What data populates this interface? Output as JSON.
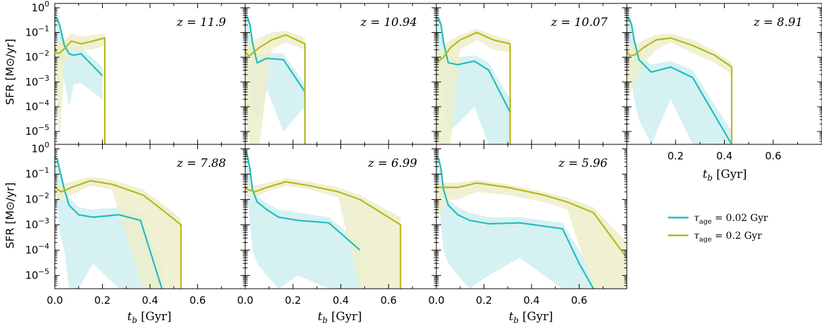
{
  "figure": {
    "ylabel_prefix": "SFR ",
    "ylabel_unit": "[M⊙/yr]",
    "xlabel_var": "t",
    "xlabel_sub": "b",
    "xlabel_unit": " [Gyr]"
  },
  "legend": [
    {
      "tau": "τ",
      "sub": "age",
      "rest": " = 0.02 Gyr",
      "color": "#1fbdbd"
    },
    {
      "tau": "τ",
      "sub": "age",
      "rest": " = 0.2 Gyr",
      "color": "#b5b81a"
    }
  ],
  "colors": {
    "cyan": "#1fbdbd",
    "cyan_band": "#cfeef0",
    "olive": "#b5b81a",
    "olive_band": "#ecefca"
  },
  "chart_data": [
    {
      "type": "line",
      "label": "z = 11.9",
      "xlim": [
        0.0,
        0.8
      ],
      "ylim": [
        3e-06,
        1.5
      ],
      "yscale": "log",
      "series": [
        {
          "name": "τage = 0.02 Gyr",
          "x": [
            0.0,
            0.01,
            0.02,
            0.04,
            0.06,
            0.08,
            0.11,
            0.2
          ],
          "y": [
            0.4,
            0.35,
            0.2,
            0.03,
            0.014,
            0.012,
            0.014,
            0.0018
          ],
          "lo": [
            0.05,
            0.03,
            0.01,
            0.001,
            0.0001,
            0.0008,
            0.0009,
            0.0002
          ],
          "hi": [
            0.6,
            0.5,
            0.3,
            0.05,
            0.025,
            0.025,
            0.025,
            0.004
          ]
        },
        {
          "name": "τage = 0.2 Gyr",
          "x": [
            0.0,
            0.01,
            0.02,
            0.04,
            0.07,
            0.11,
            0.16,
            0.21
          ],
          "y": [
            0.025,
            0.014,
            0.015,
            0.022,
            0.045,
            0.035,
            0.045,
            0.06
          ],
          "lo": [
            0.001,
            0.0001,
            3e-06,
            0.005,
            0.02,
            0.02,
            0.02,
            0.03
          ],
          "hi": [
            0.04,
            0.04,
            0.05,
            0.05,
            0.09,
            0.07,
            0.08,
            0.09
          ],
          "drop_x": 0.21
        }
      ]
    },
    {
      "type": "line",
      "label": "z = 10.94",
      "xlim": [
        0.0,
        0.8
      ],
      "ylim": [
        3e-06,
        1.5
      ],
      "yscale": "log",
      "series": [
        {
          "name": "τage = 0.02 Gyr",
          "x": [
            0.0,
            0.01,
            0.02,
            0.03,
            0.05,
            0.09,
            0.16,
            0.25
          ],
          "y": [
            0.45,
            0.4,
            0.2,
            0.04,
            0.006,
            0.009,
            0.008,
            0.0004
          ],
          "lo": [
            0.05,
            0.01,
            0.001,
            0.0001,
            3e-05,
            0.0005,
            1e-05,
            0.0001
          ],
          "hi": [
            0.6,
            0.5,
            0.3,
            0.06,
            0.012,
            0.015,
            0.014,
            0.0008
          ]
        },
        {
          "name": "τage = 0.2 Gyr",
          "x": [
            0.0,
            0.01,
            0.02,
            0.06,
            0.11,
            0.17,
            0.25
          ],
          "y": [
            0.018,
            0.012,
            0.012,
            0.025,
            0.05,
            0.08,
            0.035
          ],
          "lo": [
            0.0001,
            1e-05,
            3e-06,
            3e-06,
            0.02,
            0.04,
            0.02
          ],
          "hi": [
            0.03,
            0.03,
            0.04,
            0.06,
            0.1,
            0.12,
            0.06
          ],
          "drop_x": 0.25
        }
      ]
    },
    {
      "type": "line",
      "label": "z = 10.07",
      "xlim": [
        0.0,
        0.8
      ],
      "ylim": [
        3e-06,
        1.5
      ],
      "yscale": "log",
      "series": [
        {
          "name": "τage = 0.02 Gyr",
          "x": [
            0.0,
            0.01,
            0.02,
            0.03,
            0.05,
            0.09,
            0.16,
            0.22,
            0.31
          ],
          "y": [
            0.4,
            0.35,
            0.2,
            0.04,
            0.006,
            0.005,
            0.007,
            0.003,
            6e-05
          ],
          "lo": [
            0.05,
            0.01,
            0.001,
            0.0002,
            1e-05,
            2e-05,
            0.0001,
            3e-06,
            3e-06
          ],
          "hi": [
            0.6,
            0.5,
            0.3,
            0.06,
            0.012,
            0.01,
            0.012,
            0.006,
            0.0002
          ]
        },
        {
          "name": "τage = 0.2 Gyr",
          "x": [
            0.0,
            0.01,
            0.03,
            0.06,
            0.1,
            0.17,
            0.24,
            0.31
          ],
          "y": [
            0.01,
            0.007,
            0.01,
            0.025,
            0.05,
            0.1,
            0.05,
            0.035
          ],
          "lo": [
            1e-05,
            3e-06,
            3e-06,
            3e-06,
            0.02,
            0.05,
            0.02,
            0.015
          ],
          "hi": [
            0.02,
            0.02,
            0.03,
            0.05,
            0.08,
            0.14,
            0.08,
            0.05
          ],
          "drop_x": 0.31
        }
      ]
    },
    {
      "type": "line",
      "label": "z = 8.91",
      "xlim": [
        0.0,
        0.8
      ],
      "ylim": [
        3e-06,
        1.5
      ],
      "yscale": "log",
      "series": [
        {
          "name": "τage = 0.02 Gyr",
          "x": [
            0.0,
            0.01,
            0.02,
            0.03,
            0.05,
            0.1,
            0.18,
            0.27,
            0.43
          ],
          "y": [
            0.4,
            0.35,
            0.2,
            0.05,
            0.008,
            0.0025,
            0.004,
            0.0015,
            3e-06
          ],
          "lo": [
            0.05,
            0.01,
            0.001,
            0.0002,
            3e-05,
            3e-06,
            0.0002,
            3e-06,
            3e-06
          ],
          "hi": [
            0.6,
            0.5,
            0.3,
            0.07,
            0.015,
            0.005,
            0.007,
            0.003,
            1e-05
          ]
        },
        {
          "name": "τage = 0.2 Gyr",
          "x": [
            0.0,
            0.01,
            0.03,
            0.07,
            0.12,
            0.18,
            0.27,
            0.36,
            0.43
          ],
          "y": [
            0.018,
            0.012,
            0.012,
            0.025,
            0.05,
            0.06,
            0.03,
            0.012,
            0.004
          ],
          "lo": [
            0.0003,
            0.0003,
            0.001,
            0.006,
            0.02,
            0.04,
            0.015,
            0.006,
            0.002
          ],
          "hi": [
            0.03,
            0.03,
            0.03,
            0.05,
            0.08,
            0.09,
            0.05,
            0.018,
            0.006
          ],
          "drop_x": 0.43
        }
      ]
    },
    {
      "type": "line",
      "label": "z = 7.88",
      "xlim": [
        0.0,
        0.8
      ],
      "ylim": [
        3e-06,
        1.5
      ],
      "yscale": "log",
      "series": [
        {
          "name": "τage = 0.02 Gyr",
          "x": [
            0.0,
            0.01,
            0.02,
            0.04,
            0.06,
            0.1,
            0.16,
            0.27,
            0.36,
            0.45
          ],
          "y": [
            0.45,
            0.4,
            0.15,
            0.025,
            0.006,
            0.0025,
            0.002,
            0.0025,
            0.0015,
            3e-06
          ],
          "lo": [
            0.05,
            0.01,
            0.0005,
            0.0001,
            3e-06,
            3e-06,
            3e-05,
            3e-06,
            3e-06,
            3e-06
          ],
          "hi": [
            0.6,
            0.5,
            0.25,
            0.04,
            0.012,
            0.005,
            0.004,
            0.005,
            0.003,
            3e-05
          ]
        },
        {
          "name": "τage = 0.2 Gyr",
          "x": [
            0.0,
            0.01,
            0.03,
            0.07,
            0.15,
            0.24,
            0.37,
            0.45,
            0.53
          ],
          "y": [
            0.035,
            0.025,
            0.02,
            0.03,
            0.055,
            0.04,
            0.015,
            0.004,
            0.001
          ],
          "lo": [
            0.015,
            0.01,
            0.01,
            0.015,
            0.035,
            0.025,
            3e-06,
            3e-06,
            3e-06
          ],
          "hi": [
            0.05,
            0.04,
            0.04,
            0.05,
            0.08,
            0.06,
            0.025,
            0.007,
            0.0018
          ],
          "drop_x": 0.53
        }
      ]
    },
    {
      "type": "line",
      "label": "z = 6.99",
      "xlim": [
        0.0,
        0.8
      ],
      "ylim": [
        3e-06,
        1.5
      ],
      "yscale": "log",
      "series": [
        {
          "name": "τage = 0.02 Gyr",
          "x": [
            0.0,
            0.01,
            0.02,
            0.03,
            0.05,
            0.09,
            0.14,
            0.22,
            0.35,
            0.48
          ],
          "y": [
            0.8,
            0.5,
            0.15,
            0.025,
            0.008,
            0.004,
            0.002,
            0.0015,
            0.0012,
            0.0001
          ],
          "lo": [
            0.05,
            0.01,
            0.001,
            0.0001,
            3e-05,
            1e-05,
            3e-06,
            1e-05,
            3e-06,
            3e-06
          ],
          "hi": [
            0.9,
            0.7,
            0.25,
            0.04,
            0.014,
            0.007,
            0.004,
            0.003,
            0.002,
            0.0002
          ]
        },
        {
          "name": "τage = 0.2 Gyr",
          "x": [
            0.0,
            0.01,
            0.04,
            0.09,
            0.17,
            0.27,
            0.39,
            0.48,
            0.65
          ],
          "y": [
            0.03,
            0.025,
            0.02,
            0.03,
            0.05,
            0.035,
            0.02,
            0.01,
            0.001
          ],
          "lo": [
            0.015,
            0.012,
            0.012,
            0.02,
            0.035,
            0.025,
            0.012,
            3e-06,
            3e-06
          ],
          "hi": [
            0.05,
            0.04,
            0.035,
            0.045,
            0.07,
            0.05,
            0.03,
            0.015,
            0.002
          ],
          "drop_x": 0.65
        }
      ]
    },
    {
      "type": "line",
      "label": "z = 5.96",
      "xlim": [
        0.0,
        0.8
      ],
      "ylim": [
        3e-06,
        1.5
      ],
      "yscale": "log",
      "series": [
        {
          "name": "τage = 0.02 Gyr",
          "x": [
            0.0,
            0.01,
            0.02,
            0.03,
            0.05,
            0.09,
            0.14,
            0.22,
            0.35,
            0.53,
            0.6,
            0.66
          ],
          "y": [
            0.5,
            0.4,
            0.15,
            0.025,
            0.006,
            0.0025,
            0.0015,
            0.0011,
            0.0012,
            0.0007,
            3e-05,
            3e-06
          ],
          "lo": [
            0.05,
            0.01,
            0.001,
            0.0001,
            3e-05,
            1e-05,
            3e-06,
            1e-05,
            5e-05,
            3e-06,
            3e-06,
            3e-06
          ],
          "hi": [
            0.6,
            0.5,
            0.25,
            0.04,
            0.01,
            0.005,
            0.003,
            0.002,
            0.002,
            0.0012,
            0.0001,
            1e-05
          ]
        },
        {
          "name": "τage = 0.2 Gyr",
          "x": [
            0.0,
            0.06,
            0.09,
            0.17,
            0.3,
            0.45,
            0.55,
            0.66,
            0.8
          ],
          "y": [
            0.03,
            0.03,
            0.03,
            0.045,
            0.03,
            0.015,
            0.008,
            0.003,
            5e-05
          ],
          "lo": [
            0.002,
            0.01,
            0.01,
            0.02,
            0.015,
            0.008,
            0.004,
            3e-06,
            3e-06
          ],
          "hi": [
            0.05,
            0.045,
            0.045,
            0.06,
            0.04,
            0.02,
            0.012,
            0.005,
            0.0002
          ],
          "drop_x": null
        }
      ]
    }
  ],
  "ticks": {
    "y": [
      {
        "v": 1,
        "base": "10",
        "exp": "0"
      },
      {
        "v": 0.1,
        "base": "10",
        "exp": "−1"
      },
      {
        "v": 0.01,
        "base": "10",
        "exp": "−2"
      },
      {
        "v": 0.001,
        "base": "10",
        "exp": "−3"
      },
      {
        "v": 0.0001,
        "base": "10",
        "exp": "−4"
      },
      {
        "v": 1e-05,
        "base": "10",
        "exp": "−5"
      }
    ],
    "x": [
      {
        "v": 0.0,
        "label": "0.0"
      },
      {
        "v": 0.2,
        "label": "0.2"
      },
      {
        "v": 0.4,
        "label": "0.4"
      },
      {
        "v": 0.6,
        "label": "0.6"
      }
    ],
    "x_top_right": [
      {
        "v": 0.2,
        "label": "0.2"
      },
      {
        "v": 0.4,
        "label": "0.4"
      },
      {
        "v": 0.6,
        "label": "0.6"
      }
    ]
  }
}
